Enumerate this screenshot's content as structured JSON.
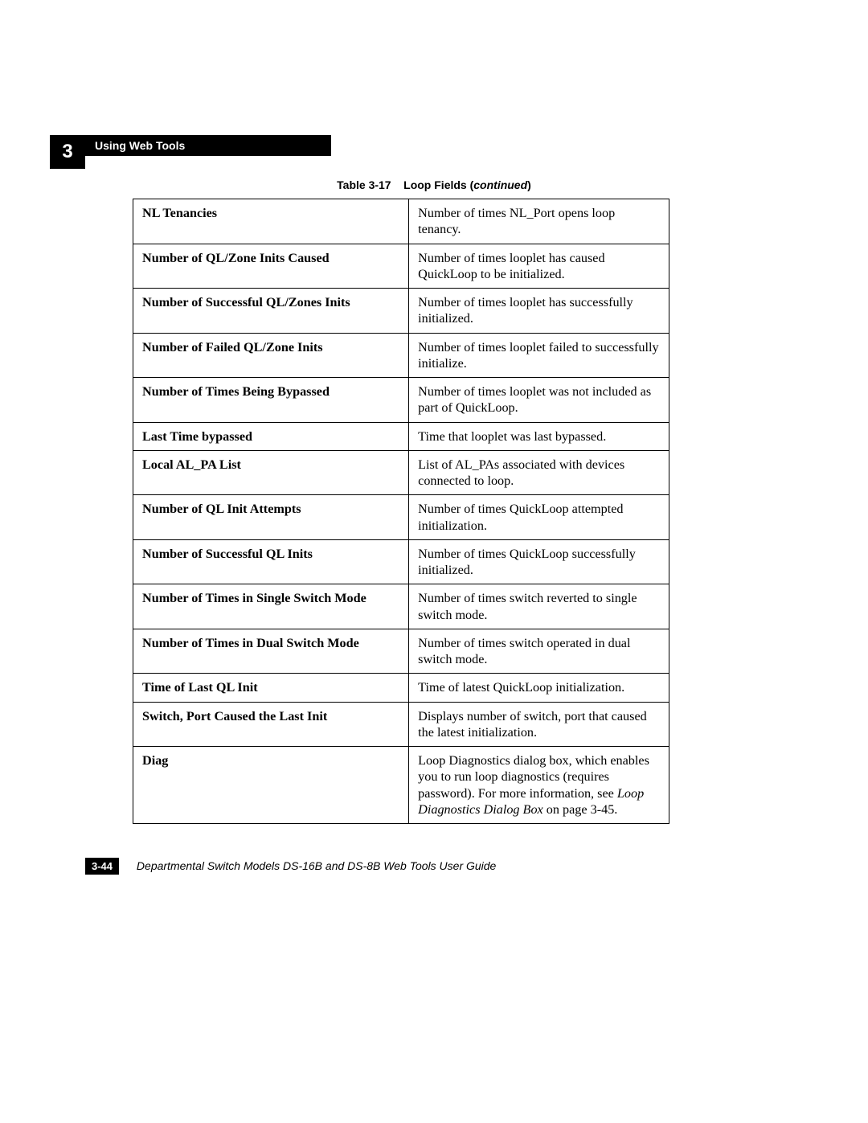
{
  "header": {
    "chapter_number": "3",
    "section_title": "Using Web Tools"
  },
  "caption": {
    "prefix": "Table 3-17",
    "title": "Loop Fields (",
    "emph": "continued",
    "suffix": ")"
  },
  "table": {
    "rows": [
      {
        "field": "NL Tenancies",
        "desc": "Number of times NL_Port opens loop tenancy."
      },
      {
        "field": "Number of QL/Zone Inits Caused",
        "desc": "Number of times looplet has caused QuickLoop to be initialized."
      },
      {
        "field": "Number of Successful QL/Zones Inits",
        "desc": "Number of times looplet has successfully initialized."
      },
      {
        "field": "Number of Failed QL/Zone Inits",
        "desc": "Number of times looplet failed to successfully initialize."
      },
      {
        "field": "Number of Times Being Bypassed",
        "desc": "Number of times looplet was not included as part of QuickLoop."
      },
      {
        "field": "Last Time bypassed",
        "desc": "Time that looplet was last bypassed."
      },
      {
        "field": "Local AL_PA List",
        "desc": "List of AL_PAs associated with devices connected to loop."
      },
      {
        "field": "Number of QL Init Attempts",
        "desc": "Number of times QuickLoop attempted initialization."
      },
      {
        "field": "Number of Successful QL Inits",
        "desc": "Number of times QuickLoop successfully initialized."
      },
      {
        "field": "Number of Times in Single Switch Mode",
        "desc": "Number of times switch reverted to single switch mode."
      },
      {
        "field": "Number of Times in Dual Switch Mode",
        "desc": "Number of times switch operated in dual switch mode."
      },
      {
        "field": "Time of Last QL Init",
        "desc": "Time of latest QuickLoop initialization."
      },
      {
        "field": "Switch, Port Caused the Last Init",
        "desc": "Displays number of switch, port that caused the latest initialization."
      }
    ],
    "diag_row": {
      "field": "Diag",
      "desc_before": "Loop Diagnostics dialog box, which enables you to run loop diagnostics (requires password). For more information, see ",
      "desc_xref": "Loop Diagnostics Dialog Box",
      "desc_after": " on page 3-45."
    }
  },
  "footer": {
    "page_number": "3-44",
    "book_title": "Departmental Switch Models DS-16B and DS-8B Web Tools User Guide"
  }
}
